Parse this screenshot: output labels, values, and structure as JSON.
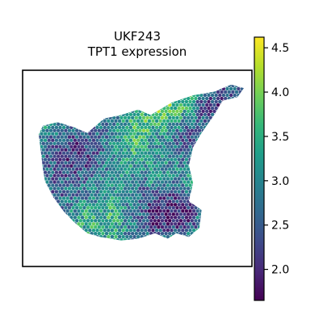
{
  "chart_data": {
    "type": "scatter",
    "title": "UKF243",
    "subtitle": "TPT1 expression",
    "colormap": "viridis",
    "colorbar": {
      "vmin": 1.65,
      "vmax": 4.62,
      "ticks": [
        "2.0",
        "2.5",
        "3.0",
        "3.5",
        "4.0",
        "4.5"
      ],
      "tick_values": [
        2.0,
        2.5,
        3.0,
        3.5,
        4.0,
        4.5
      ]
    },
    "axes_visible": false,
    "grid": false,
    "color_stops": [
      "#440154",
      "#482878",
      "#3e4a89",
      "#31688e",
      "#26828e",
      "#1f9e89",
      "#35b779",
      "#6ece58",
      "#b5de2b",
      "#fde725"
    ],
    "tissue_outline": [
      [
        0.05,
        0.26
      ],
      [
        0.12,
        0.24
      ],
      [
        0.2,
        0.27
      ],
      [
        0.26,
        0.3
      ],
      [
        0.34,
        0.22
      ],
      [
        0.42,
        0.2
      ],
      [
        0.5,
        0.17
      ],
      [
        0.56,
        0.2
      ],
      [
        0.66,
        0.13
      ],
      [
        0.76,
        0.09
      ],
      [
        0.86,
        0.07
      ],
      [
        0.94,
        0.03
      ],
      [
        1.0,
        0.05
      ],
      [
        0.97,
        0.1
      ],
      [
        0.9,
        0.12
      ],
      [
        0.86,
        0.2
      ],
      [
        0.8,
        0.3
      ],
      [
        0.76,
        0.38
      ],
      [
        0.74,
        0.48
      ],
      [
        0.76,
        0.58
      ],
      [
        0.74,
        0.68
      ],
      [
        0.8,
        0.73
      ],
      [
        0.79,
        0.83
      ],
      [
        0.74,
        0.88
      ],
      [
        0.68,
        0.86
      ],
      [
        0.64,
        0.89
      ],
      [
        0.58,
        0.86
      ],
      [
        0.5,
        0.89
      ],
      [
        0.42,
        0.9
      ],
      [
        0.32,
        0.88
      ],
      [
        0.26,
        0.86
      ],
      [
        0.2,
        0.8
      ],
      [
        0.15,
        0.74
      ],
      [
        0.1,
        0.66
      ],
      [
        0.06,
        0.57
      ],
      [
        0.05,
        0.5
      ],
      [
        0.04,
        0.4
      ],
      [
        0.03,
        0.31
      ]
    ]
  }
}
